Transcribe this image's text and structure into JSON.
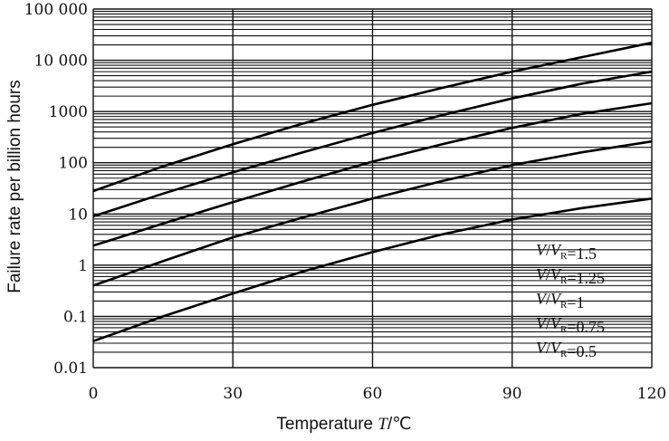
{
  "chart_data": {
    "type": "line",
    "xlabel": "Temperature T/℃",
    "xlabel_prefix": "Temperature ",
    "xlabel_var": "T",
    "xlabel_unit": "/℃",
    "ylabel": "Failure rate per billion hours",
    "xlim": [
      0,
      120
    ],
    "ylim": [
      0.01,
      100000
    ],
    "yscale": "log",
    "grid": true,
    "x_ticks": [
      0,
      30,
      60,
      90,
      120
    ],
    "x_tick_labels": [
      "0",
      "30",
      "60",
      "90",
      "120"
    ],
    "y_ticks": [
      0.01,
      0.1,
      1,
      10,
      100,
      1000,
      10000,
      100000
    ],
    "y_tick_labels": [
      "0.01",
      "0.1",
      "1",
      "10",
      "100",
      "1000",
      "10 000",
      "100 000"
    ],
    "series": [
      {
        "name": "V/V_R=1.5",
        "label": {
          "var1": "V",
          "var2": "V",
          "sub": "R",
          "eq": "=1.5"
        },
        "x": [
          0,
          15,
          30,
          45,
          60,
          75,
          90,
          105,
          120
        ],
        "y": [
          28,
          85,
          230,
          580,
          1350,
          2900,
          6000,
          11500,
          22000
        ]
      },
      {
        "name": "V/V_R=1.25",
        "label": {
          "var1": "V",
          "var2": "V",
          "sub": "R",
          "eq": "=1.25"
        },
        "x": [
          0,
          15,
          30,
          45,
          60,
          75,
          90,
          105,
          120
        ],
        "y": [
          9,
          25,
          65,
          160,
          380,
          850,
          1800,
          3500,
          6000
        ]
      },
      {
        "name": "V/V_R=1",
        "label": {
          "var1": "V",
          "var2": "V",
          "sub": "R",
          "eq": "=1"
        },
        "x": [
          0,
          15,
          30,
          45,
          60,
          75,
          90,
          105,
          120
        ],
        "y": [
          2.4,
          6.5,
          17,
          43,
          105,
          230,
          480,
          900,
          1450
        ]
      },
      {
        "name": "V/V_R=0.75",
        "label": {
          "var1": "V",
          "var2": "V",
          "sub": "R",
          "eq": "=0.75"
        },
        "x": [
          0,
          15,
          30,
          45,
          60,
          75,
          90,
          105,
          120
        ],
        "y": [
          0.4,
          1.2,
          3.5,
          8.5,
          20,
          44,
          90,
          160,
          260
        ]
      },
      {
        "name": "V/V_R=0.5",
        "label": {
          "var1": "V",
          "var2": "V",
          "sub": "R",
          "eq": "=0.5"
        },
        "x": [
          0,
          15,
          30,
          45,
          60,
          75,
          90,
          105,
          120
        ],
        "y": [
          0.033,
          0.1,
          0.28,
          0.75,
          1.8,
          4,
          7.8,
          13,
          20
        ]
      }
    ]
  }
}
